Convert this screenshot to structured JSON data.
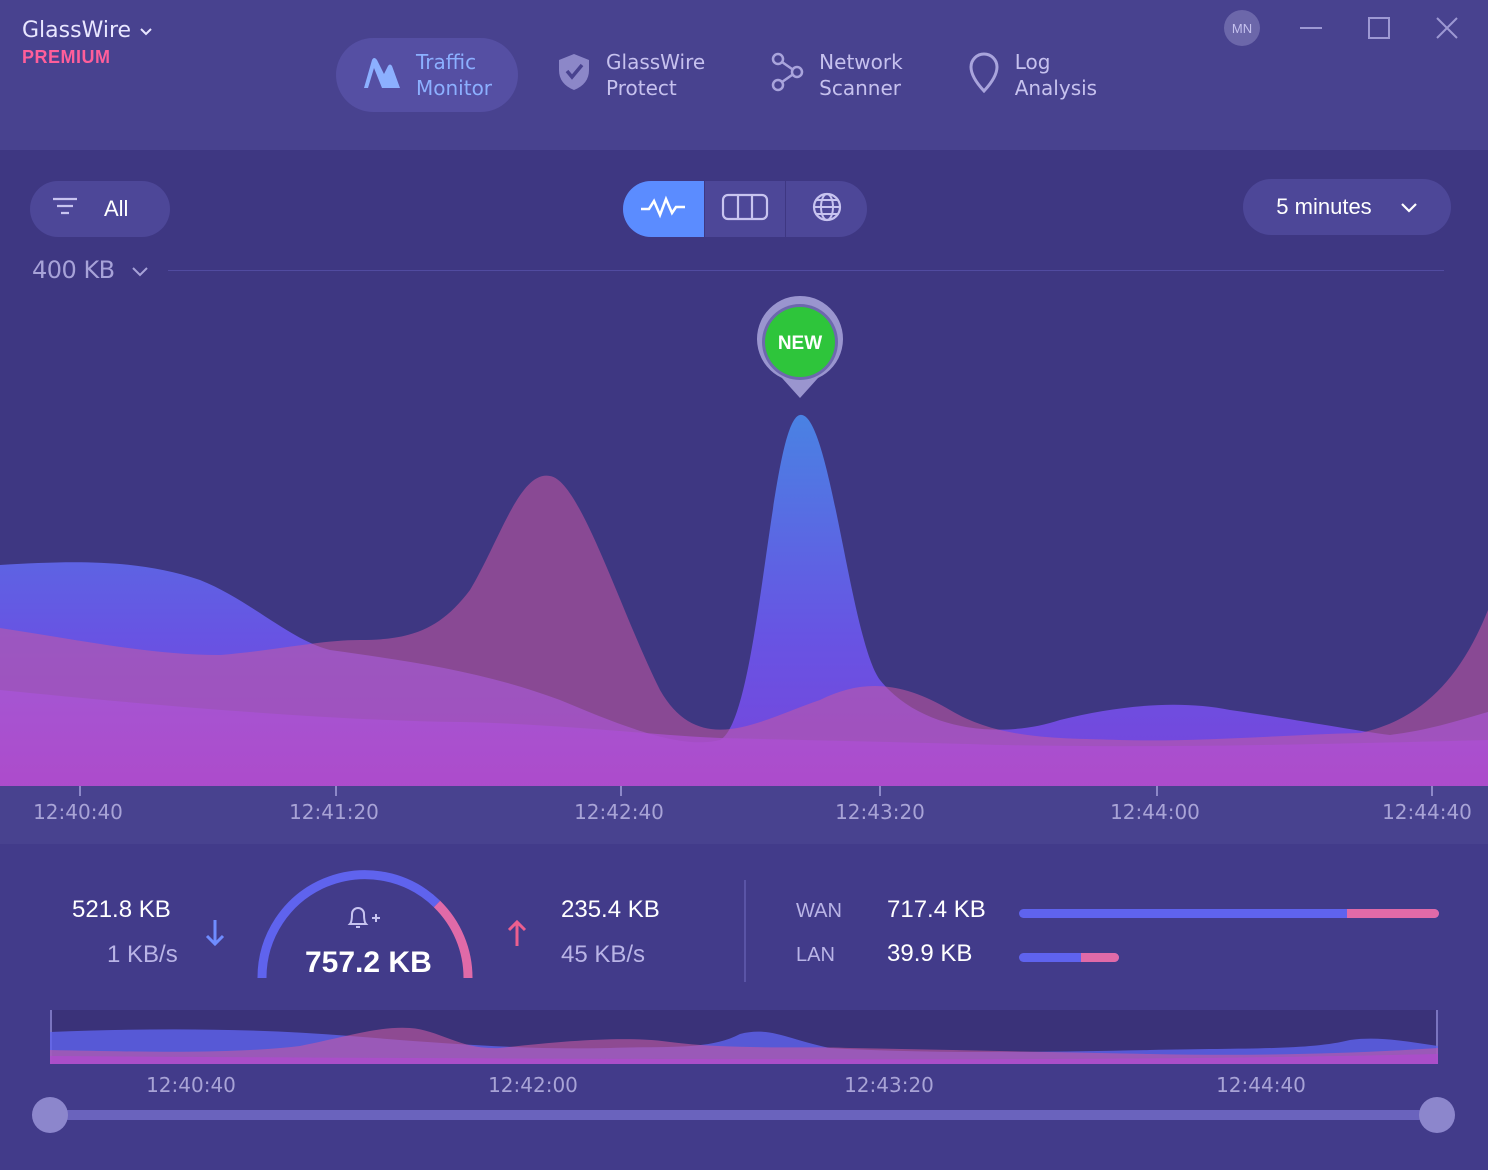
{
  "app": {
    "name": "GlassWire",
    "tier": "PREMIUM"
  },
  "tabs": [
    {
      "label": "Traffic\nMonitor",
      "icon": "traffic-monitor-icon",
      "active": true
    },
    {
      "label": "GlassWire\nProtect",
      "icon": "shield-check-icon",
      "active": false
    },
    {
      "label": "Network\nScanner",
      "icon": "network-scanner-icon",
      "active": false
    },
    {
      "label": "Log\nAnalysis",
      "icon": "location-pin-icon",
      "active": false
    }
  ],
  "window": {
    "avatar_initials": "MN"
  },
  "filter": {
    "label": "All"
  },
  "view_switcher": [
    "graph-view-icon",
    "columns-view-icon",
    "globe-view-icon"
  ],
  "time_range": {
    "label": "5 minutes"
  },
  "y_scale": {
    "label": "400 KB"
  },
  "marker": {
    "label": "NEW"
  },
  "colors": {
    "download": "#5f63ee",
    "upload": "#e06aa8",
    "new_badge": "#2ec53b",
    "accent": "#5b8cff"
  },
  "chart_data": {
    "type": "area",
    "x": [
      "12:40:40",
      "12:41:20",
      "12:42:40",
      "12:43:20",
      "12:44:00",
      "12:44:40"
    ],
    "series": [],
    "xlabel": "",
    "ylabel": ""
  },
  "stats": {
    "download_total": "521.8 KB",
    "download_rate": "1 KB/s",
    "total": "757.2 KB",
    "upload_total": "235.4 KB",
    "upload_rate": "45 KB/s",
    "wan_label": "WAN",
    "wan_value": "717.4 KB",
    "wan_upload_fraction": 0.22,
    "lan_label": "LAN",
    "lan_value": "39.9 KB",
    "lan_upload_fraction": 0.38,
    "gauge_upload_fraction": 0.25
  },
  "minimap": {
    "ticks": [
      "12:40:40",
      "12:42:00",
      "12:43:20",
      "12:44:40"
    ]
  }
}
